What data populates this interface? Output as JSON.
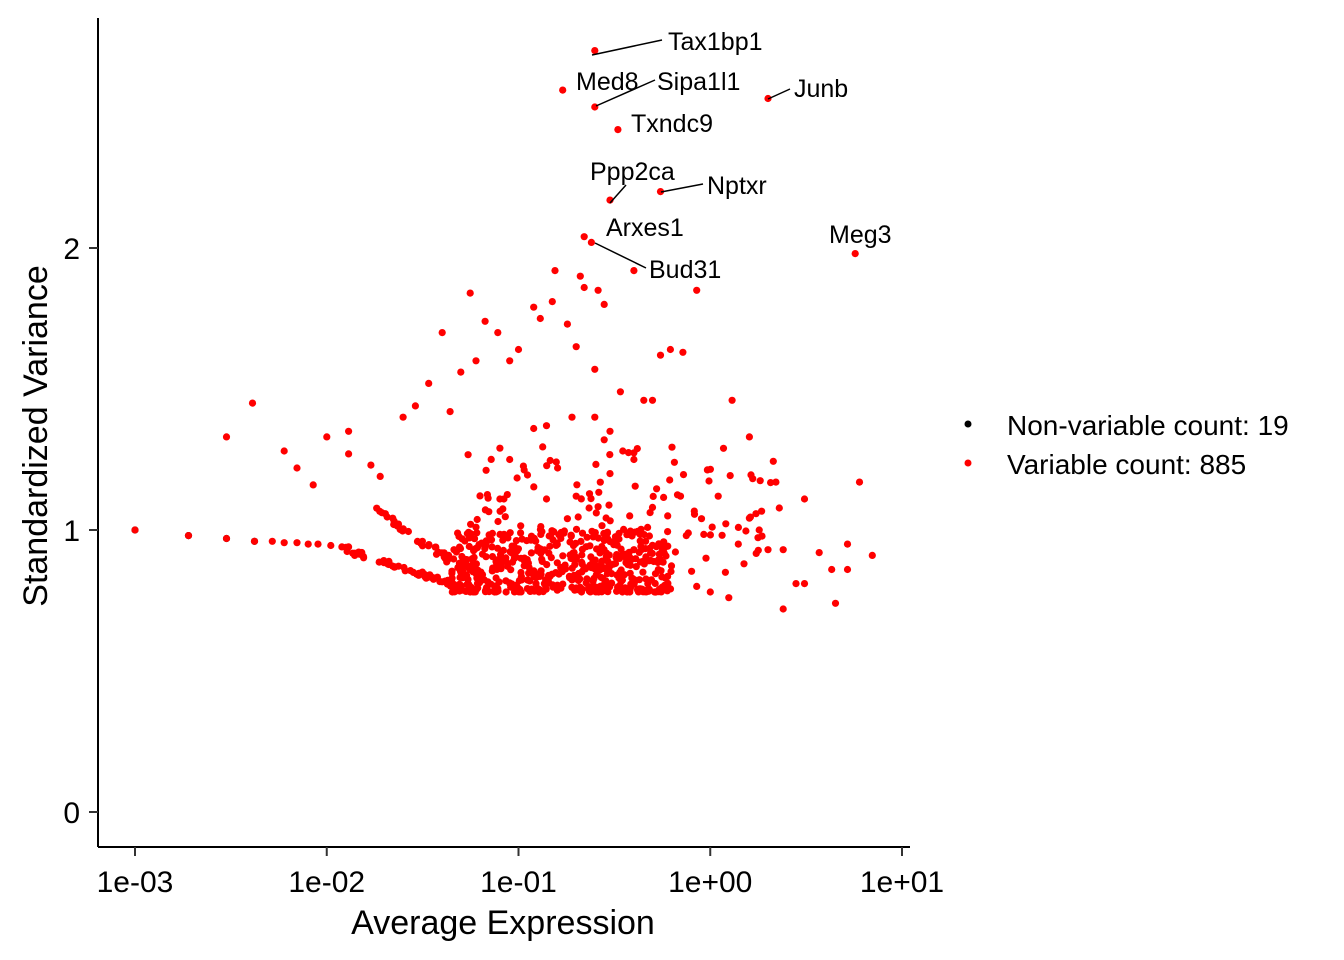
{
  "chart_data": {
    "type": "scatter",
    "title": "",
    "xlabel": "Average Expression",
    "ylabel": "Standardized Variance",
    "x_scale": "log10",
    "xlim": [
      0.001,
      10
    ],
    "ylim": [
      0,
      2.8
    ],
    "x_ticks": [
      {
        "value": 0.001,
        "label": "1e-03"
      },
      {
        "value": 0.01,
        "label": "1e-02"
      },
      {
        "value": 0.1,
        "label": "1e-01"
      },
      {
        "value": 1,
        "label": "1e+00"
      },
      {
        "value": 10,
        "label": "1e+01"
      }
    ],
    "y_ticks": [
      {
        "value": 0,
        "label": "0"
      },
      {
        "value": 1,
        "label": "1"
      },
      {
        "value": 2,
        "label": "2"
      }
    ],
    "grid": false,
    "legend_position": "right",
    "series": [
      {
        "name": "Non-variable count: 19",
        "color": "#000000",
        "points": [
          [
            0.001,
            1.0
          ],
          [
            0.0019,
            0.98
          ],
          [
            0.003,
            0.97
          ],
          [
            0.0042,
            0.96
          ]
        ]
      },
      {
        "name": "Variable count: 885",
        "color": "#ff0000",
        "points": [
          [
            0.001,
            1.0
          ],
          [
            0.0019,
            0.98
          ],
          [
            0.003,
            0.97
          ],
          [
            0.0042,
            0.96
          ],
          [
            0.0052,
            0.96
          ],
          [
            0.006,
            0.955
          ],
          [
            0.007,
            0.955
          ],
          [
            0.008,
            0.95
          ],
          [
            0.009,
            0.95
          ],
          [
            0.0105,
            0.945
          ],
          [
            0.012,
            0.94
          ],
          [
            0.013,
            0.94
          ],
          [
            0.003,
            1.33
          ],
          [
            0.0041,
            1.45
          ],
          [
            0.006,
            1.28
          ],
          [
            0.007,
            1.22
          ],
          [
            0.0085,
            1.16
          ],
          [
            0.01,
            1.33
          ],
          [
            0.013,
            1.35
          ],
          [
            0.013,
            1.27
          ],
          [
            0.017,
            1.23
          ],
          [
            0.019,
            1.19
          ],
          [
            0.025,
            1.4
          ],
          [
            0.029,
            1.44
          ],
          [
            0.034,
            1.52
          ],
          [
            0.04,
            1.7
          ],
          [
            0.044,
            1.42
          ],
          [
            0.05,
            1.56
          ],
          [
            0.056,
            1.84
          ],
          [
            0.06,
            1.6
          ],
          [
            0.067,
            1.74
          ],
          [
            0.078,
            1.7
          ],
          [
            0.09,
            1.6
          ],
          [
            0.1,
            1.64
          ],
          [
            0.12,
            1.79
          ],
          [
            0.13,
            1.75
          ],
          [
            0.15,
            1.81
          ],
          [
            0.155,
            1.92
          ],
          [
            0.18,
            1.73
          ],
          [
            0.2,
            1.65
          ],
          [
            0.22,
            1.86
          ],
          [
            0.25,
            1.57
          ],
          [
            0.21,
            1.9
          ],
          [
            0.26,
            1.85
          ],
          [
            0.28,
            1.8
          ],
          [
            0.25,
            1.4
          ],
          [
            0.3,
            1.35
          ],
          [
            0.35,
            1.28
          ],
          [
            0.4,
            1.25
          ],
          [
            0.45,
            1.46
          ],
          [
            0.5,
            1.46
          ],
          [
            0.55,
            1.62
          ],
          [
            0.62,
            1.64
          ],
          [
            0.72,
            1.63
          ],
          [
            0.85,
            1.85
          ],
          [
            1.3,
            1.46
          ],
          [
            1.6,
            1.33
          ],
          [
            2.2,
            1.17
          ],
          [
            3.1,
            1.11
          ],
          [
            6.0,
            1.17
          ],
          [
            5.2,
            0.95
          ],
          [
            7.0,
            0.91
          ],
          [
            3.7,
            0.92
          ],
          [
            4.3,
            0.86
          ],
          [
            4.5,
            0.74
          ],
          [
            2.4,
            0.72
          ],
          [
            2.8,
            0.81
          ],
          [
            3.1,
            0.81
          ],
          [
            5.2,
            0.86
          ],
          [
            0.34,
            1.49
          ],
          [
            0.18,
            1.04
          ],
          [
            0.5,
            1.08
          ],
          [
            0.65,
            1.24
          ],
          [
            0.7,
            1.12
          ],
          [
            0.9,
            1.04
          ],
          [
            1.1,
            1.12
          ],
          [
            1.8,
            1.0
          ],
          [
            1.4,
            0.95
          ],
          [
            0.08,
            1.29
          ],
          [
            0.09,
            1.25
          ],
          [
            0.12,
            1.36
          ],
          [
            0.14,
            1.37
          ],
          [
            0.19,
            1.4
          ],
          [
            0.16,
            1.22
          ],
          [
            0.28,
            1.32
          ],
          [
            0.3,
            1.2
          ],
          [
            0.06,
            1.01
          ],
          [
            0.14,
            1.11
          ],
          [
            0.08,
            1.11
          ],
          [
            0.2,
            1.12
          ],
          [
            0.46,
            0.96
          ],
          [
            0.38,
            1.05
          ],
          [
            0.6,
            1.05
          ],
          [
            0.75,
            0.98
          ],
          [
            0.95,
            0.9
          ],
          [
            1.2,
            0.85
          ],
          [
            1.5,
            0.88
          ],
          [
            2.0,
            0.93
          ],
          [
            2.4,
            0.93
          ],
          [
            0.85,
            0.8
          ],
          [
            1.0,
            0.78
          ],
          [
            1.25,
            0.76
          ]
        ]
      }
    ],
    "labeled_genes": [
      {
        "gene": "Tax1bp1",
        "x": 0.25,
        "y": 2.7
      },
      {
        "gene": "Med8",
        "x": 0.17,
        "y": 2.56
      },
      {
        "gene": "Sipa1l1",
        "x": 0.25,
        "y": 2.5
      },
      {
        "gene": "Junb",
        "x": 2.0,
        "y": 2.53
      },
      {
        "gene": "Txndc9",
        "x": 0.33,
        "y": 2.42
      },
      {
        "gene": "Ppp2ca",
        "x": 0.3,
        "y": 2.17
      },
      {
        "gene": "Nptxr",
        "x": 0.55,
        "y": 2.2
      },
      {
        "gene": "Arxes1",
        "x": 0.22,
        "y": 2.04
      },
      {
        "gene": "Bud31",
        "x": 0.4,
        "y": 1.92
      },
      {
        "gene": "Meg3",
        "x": 5.7,
        "y": 1.98
      },
      {
        "gene": "",
        "x": 0.24,
        "y": 2.02
      }
    ]
  }
}
